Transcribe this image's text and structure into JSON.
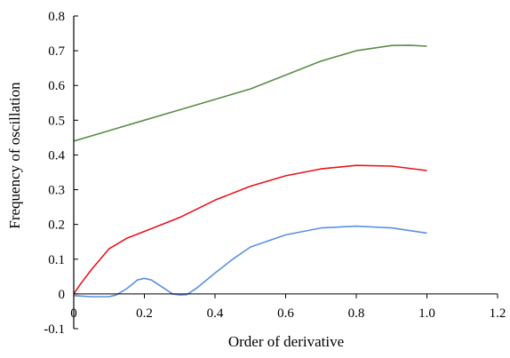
{
  "chart_data": {
    "type": "line",
    "title": "",
    "xlabel": "Order of derivative",
    "ylabel": "Frequency of oscillation",
    "xlim": [
      0,
      1.2
    ],
    "ylim": [
      -0.1,
      0.8
    ],
    "x_ticks": [
      "0",
      "0.2",
      "0.4",
      "0.6",
      "0.8",
      "1.0",
      "1.2"
    ],
    "y_ticks": [
      "-0.1",
      "0",
      "0.1",
      "0.2",
      "0.3",
      "0.4",
      "0.5",
      "0.6",
      "0.7",
      "0.8"
    ],
    "grid": false,
    "legend": "none",
    "series": [
      {
        "color": "#5b8c4a",
        "points": [
          [
            0.0,
            0.44
          ],
          [
            0.1,
            0.47
          ],
          [
            0.2,
            0.5
          ],
          [
            0.3,
            0.53
          ],
          [
            0.4,
            0.56
          ],
          [
            0.5,
            0.59
          ],
          [
            0.6,
            0.63
          ],
          [
            0.7,
            0.67
          ],
          [
            0.8,
            0.7
          ],
          [
            0.9,
            0.715
          ],
          [
            0.95,
            0.716
          ],
          [
            1.0,
            0.713
          ]
        ]
      },
      {
        "color": "#e8141e",
        "points": [
          [
            0.0,
            0.0
          ],
          [
            0.02,
            0.03
          ],
          [
            0.05,
            0.07
          ],
          [
            0.1,
            0.13
          ],
          [
            0.15,
            0.16
          ],
          [
            0.2,
            0.18
          ],
          [
            0.3,
            0.22
          ],
          [
            0.4,
            0.27
          ],
          [
            0.5,
            0.31
          ],
          [
            0.6,
            0.34
          ],
          [
            0.7,
            0.36
          ],
          [
            0.8,
            0.37
          ],
          [
            0.9,
            0.368
          ],
          [
            1.0,
            0.355
          ]
        ]
      },
      {
        "color": "#5b8fe6",
        "points": [
          [
            0.0,
            -0.005
          ],
          [
            0.05,
            -0.008
          ],
          [
            0.1,
            -0.008
          ],
          [
            0.12,
            -0.003
          ],
          [
            0.15,
            0.015
          ],
          [
            0.18,
            0.04
          ],
          [
            0.2,
            0.045
          ],
          [
            0.22,
            0.04
          ],
          [
            0.25,
            0.02
          ],
          [
            0.28,
            0.0
          ],
          [
            0.3,
            -0.003
          ],
          [
            0.32,
            -0.002
          ],
          [
            0.35,
            0.018
          ],
          [
            0.4,
            0.06
          ],
          [
            0.45,
            0.1
          ],
          [
            0.5,
            0.135
          ],
          [
            0.6,
            0.17
          ],
          [
            0.7,
            0.19
          ],
          [
            0.8,
            0.195
          ],
          [
            0.9,
            0.19
          ],
          [
            1.0,
            0.175
          ]
        ]
      }
    ]
  }
}
